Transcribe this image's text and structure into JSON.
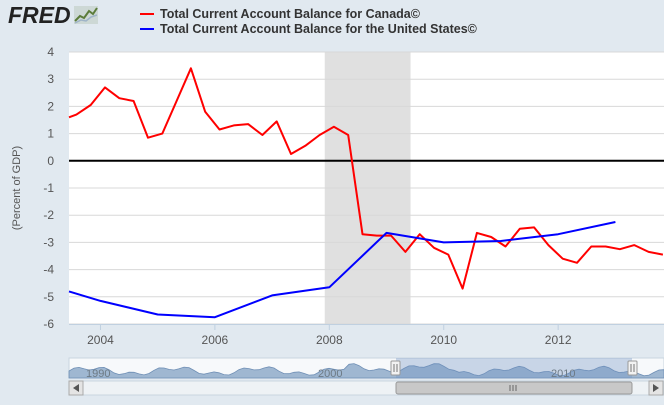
{
  "brand": {
    "logo_text": "FRED"
  },
  "chart_data": {
    "type": "line",
    "ylabel": "(Percent of GDP)",
    "ylim": [
      -6,
      4
    ],
    "yticks": [
      "4",
      "3",
      "2",
      "1",
      "0",
      "-1",
      "-2",
      "-3",
      "-4",
      "-5",
      "-6"
    ],
    "xlim": [
      2003.45,
      2013.85
    ],
    "xticks": [
      {
        "value": 2004,
        "label": "2004"
      },
      {
        "value": 2006,
        "label": "2006"
      },
      {
        "value": 2008,
        "label": "2008"
      },
      {
        "value": 2010,
        "label": "2010"
      },
      {
        "value": 2012,
        "label": "2012"
      }
    ],
    "recession": [
      2007.92,
      2009.42
    ],
    "series": [
      {
        "name": "Total Current Account Balance for Canada©",
        "color": "#ff0000",
        "x": [
          2003.45,
          2003.58,
          2003.83,
          2004.08,
          2004.33,
          2004.58,
          2004.83,
          2005.08,
          2005.33,
          2005.58,
          2005.83,
          2006.08,
          2006.33,
          2006.58,
          2006.83,
          2007.08,
          2007.33,
          2007.58,
          2007.83,
          2008.08,
          2008.33,
          2008.58,
          2008.83,
          2009.08,
          2009.33,
          2009.58,
          2009.83,
          2010.08,
          2010.33,
          2010.58,
          2010.83,
          2011.08,
          2011.33,
          2011.58,
          2011.83,
          2012.08,
          2012.33,
          2012.58,
          2012.83,
          2013.08,
          2013.33,
          2013.58,
          2013.83
        ],
        "y": [
          1.6,
          1.7,
          2.05,
          2.7,
          2.3,
          2.2,
          0.85,
          1.0,
          2.2,
          3.4,
          1.8,
          1.15,
          1.3,
          1.35,
          0.95,
          1.45,
          0.25,
          0.55,
          0.95,
          1.25,
          0.95,
          -2.7,
          -2.75,
          -2.75,
          -3.35,
          -2.7,
          -3.2,
          -3.45,
          -4.7,
          -2.65,
          -2.8,
          -3.15,
          -2.5,
          -2.45,
          -3.1,
          -3.6,
          -3.75,
          -3.15,
          -3.15,
          -3.25,
          -3.1,
          -3.35,
          -3.45
        ]
      },
      {
        "name": "Total Current Account Balance for the United States©",
        "color": "#0000ff",
        "x": [
          2003.45,
          2004.0,
          2005.0,
          2006.0,
          2007.0,
          2008.0,
          2009.0,
          2010.0,
          2011.0,
          2012.0,
          2013.0
        ],
        "y": [
          -4.8,
          -5.15,
          -5.65,
          -5.75,
          -4.95,
          -4.65,
          -2.65,
          -3.0,
          -2.95,
          -2.7,
          -2.25
        ]
      }
    ]
  },
  "navigator": {
    "labels": [
      "1990",
      "2000",
      "2010"
    ]
  }
}
